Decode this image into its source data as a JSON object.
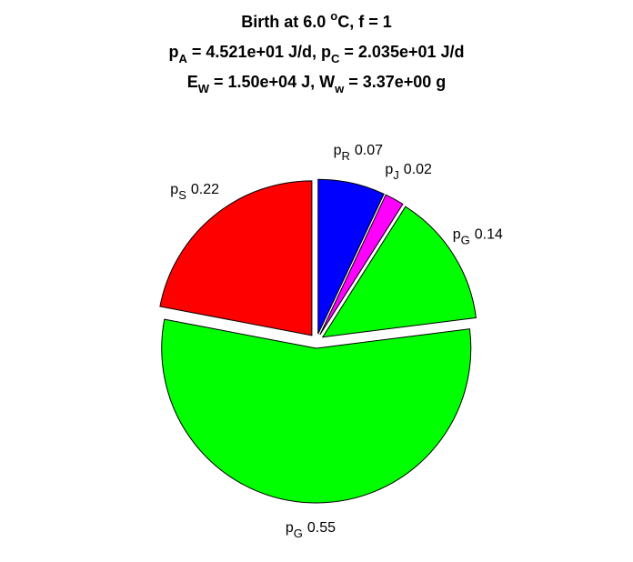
{
  "chart_data": {
    "type": "pie",
    "title_lines": [
      [
        {
          "text": "Birth at 6.0 "
        },
        {
          "sup": "o"
        },
        {
          "text": "C, f = 1"
        }
      ],
      [
        {
          "text": "p"
        },
        {
          "sub": "A"
        },
        {
          "text": " = 4.521e+01 J/d, p"
        },
        {
          "sub": "C"
        },
        {
          "text": " = 2.035e+01 J/d"
        }
      ],
      [
        {
          "text": "E"
        },
        {
          "sub": "W"
        },
        {
          "text": " = 1.50e+04 J, W"
        },
        {
          "sub": "w"
        },
        {
          "text": " = 3.37e+00 g"
        }
      ]
    ],
    "labels": [
      {
        "base": "p",
        "sub": "R"
      },
      {
        "base": "p",
        "sub": "J"
      },
      {
        "base": "p",
        "sub": "G"
      },
      {
        "base": "p",
        "sub": "G"
      },
      {
        "base": "p",
        "sub": "S"
      }
    ],
    "values": [
      0.07,
      0.02,
      0.14,
      0.55,
      0.22
    ],
    "colors": [
      "#0000ff",
      "#ff00ff",
      "#00ff00",
      "#00ff00",
      "#ff0000"
    ],
    "explode": true
  }
}
